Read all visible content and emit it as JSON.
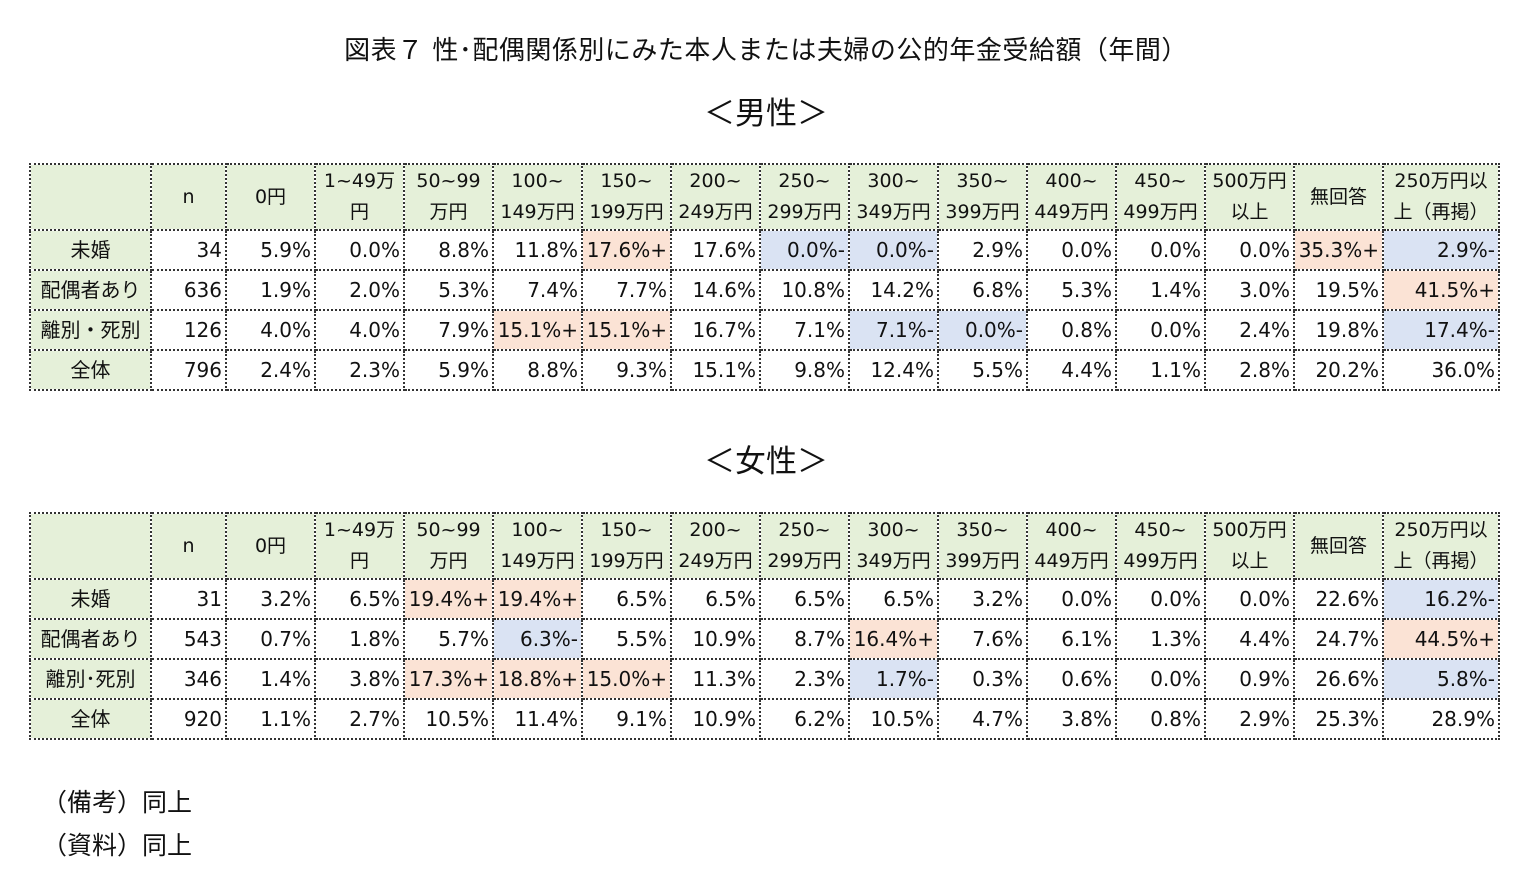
{
  "title": "図表７ 性･配偶関係別にみた本人または夫婦の公的年金受給額（年間）",
  "male_heading": "＜男性＞",
  "female_heading": "＜女性＞",
  "columns": [
    "n",
    "0円",
    "1~49万円",
    "50~99万円",
    "100~149万円",
    "150~199万円",
    "200~249万円",
    "250~299万円",
    "300~349万円",
    "350~399万円",
    "400~449万円",
    "450~499万円",
    "500万円以上",
    "無回答",
    "250万円以上（再掲）"
  ],
  "col_lines": [
    [
      "n"
    ],
    [
      "0円"
    ],
    [
      "1~49万",
      "円"
    ],
    [
      "50~99",
      "万円"
    ],
    [
      "100~",
      "149万円"
    ],
    [
      "150~",
      "199万円"
    ],
    [
      "200~",
      "249万円"
    ],
    [
      "250~",
      "299万円"
    ],
    [
      "300~",
      "349万円"
    ],
    [
      "350~",
      "399万円"
    ],
    [
      "400~",
      "449万円"
    ],
    [
      "450~",
      "499万円"
    ],
    [
      "500万円",
      "以上"
    ],
    [
      "無回答"
    ],
    [
      "250万円以",
      "上（再掲）"
    ]
  ],
  "male": {
    "rows": [
      {
        "label": "未婚",
        "cells": [
          "34",
          "5.9%",
          "0.0%",
          "8.8%",
          "11.8%",
          "17.6%+",
          "17.6%",
          "0.0%-",
          "0.0%-",
          "2.9%",
          "0.0%",
          "0.0%",
          "0.0%",
          "35.3%+",
          "2.9%-"
        ],
        "marks": [
          "",
          "",
          "",
          "",
          "",
          "pos",
          "",
          "neg",
          "neg",
          "",
          "",
          "",
          "",
          "pos",
          "neg"
        ]
      },
      {
        "label": "配偶者あり",
        "cells": [
          "636",
          "1.9%",
          "2.0%",
          "5.3%",
          "7.4%",
          "7.7%",
          "14.6%",
          "10.8%",
          "14.2%",
          "6.8%",
          "5.3%",
          "1.4%",
          "3.0%",
          "19.5%",
          "41.5%+"
        ],
        "marks": [
          "",
          "",
          "",
          "",
          "",
          "",
          "",
          "",
          "",
          "",
          "",
          "",
          "",
          "",
          "pos"
        ]
      },
      {
        "label": "離別・死別",
        "cells": [
          "126",
          "4.0%",
          "4.0%",
          "7.9%",
          "15.1%+",
          "15.1%+",
          "16.7%",
          "7.1%",
          "7.1%-",
          "0.0%-",
          "0.8%",
          "0.0%",
          "2.4%",
          "19.8%",
          "17.4%-"
        ],
        "marks": [
          "",
          "",
          "",
          "",
          "pos",
          "pos",
          "",
          "",
          "neg",
          "neg",
          "",
          "",
          "",
          "",
          "neg"
        ]
      },
      {
        "label": "全体",
        "cells": [
          "796",
          "2.4%",
          "2.3%",
          "5.9%",
          "8.8%",
          "9.3%",
          "15.1%",
          "9.8%",
          "12.4%",
          "5.5%",
          "4.4%",
          "1.1%",
          "2.8%",
          "20.2%",
          "36.0%"
        ],
        "marks": [
          "",
          "",
          "",
          "",
          "",
          "",
          "",
          "",
          "",
          "",
          "",
          "",
          "",
          "",
          ""
        ]
      }
    ]
  },
  "female": {
    "rows": [
      {
        "label": "未婚",
        "cells": [
          "31",
          "3.2%",
          "6.5%",
          "19.4%+",
          "19.4%+",
          "6.5%",
          "6.5%",
          "6.5%",
          "6.5%",
          "3.2%",
          "0.0%",
          "0.0%",
          "0.0%",
          "22.6%",
          "16.2%-"
        ],
        "marks": [
          "",
          "",
          "",
          "pos",
          "pos",
          "",
          "",
          "",
          "",
          "",
          "",
          "",
          "",
          "",
          "neg"
        ]
      },
      {
        "label": "配偶者あり",
        "cells": [
          "543",
          "0.7%",
          "1.8%",
          "5.7%",
          "6.3%-",
          "5.5%",
          "10.9%",
          "8.7%",
          "16.4%+",
          "7.6%",
          "6.1%",
          "1.3%",
          "4.4%",
          "24.7%",
          "44.5%+"
        ],
        "marks": [
          "",
          "",
          "",
          "",
          "neg",
          "",
          "",
          "",
          "pos",
          "",
          "",
          "",
          "",
          "",
          "pos"
        ]
      },
      {
        "label": "離別･死別",
        "cells": [
          "346",
          "1.4%",
          "3.8%",
          "17.3%+",
          "18.8%+",
          "15.0%+",
          "11.3%",
          "2.3%",
          "1.7%-",
          "0.3%",
          "0.6%",
          "0.0%",
          "0.9%",
          "26.6%",
          "5.8%-"
        ],
        "marks": [
          "",
          "",
          "",
          "pos",
          "pos",
          "pos",
          "",
          "",
          "neg",
          "",
          "",
          "",
          "",
          "",
          "neg"
        ]
      },
      {
        "label": "全体",
        "cells": [
          "920",
          "1.1%",
          "2.7%",
          "10.5%",
          "11.4%",
          "9.1%",
          "10.9%",
          "6.2%",
          "10.5%",
          "4.7%",
          "3.8%",
          "0.8%",
          "2.9%",
          "25.3%",
          "28.9%"
        ],
        "marks": [
          "",
          "",
          "",
          "",
          "",
          "",
          "",
          "",
          "",
          "",
          "",
          "",
          "",
          "",
          ""
        ]
      }
    ]
  },
  "notes": [
    "（備考）同上",
    "（資料）同上"
  ],
  "colors": {
    "header_bg": "#e5f0d9",
    "positive_bg": "#fbe3d5",
    "negative_bg": "#dae3f3"
  }
}
